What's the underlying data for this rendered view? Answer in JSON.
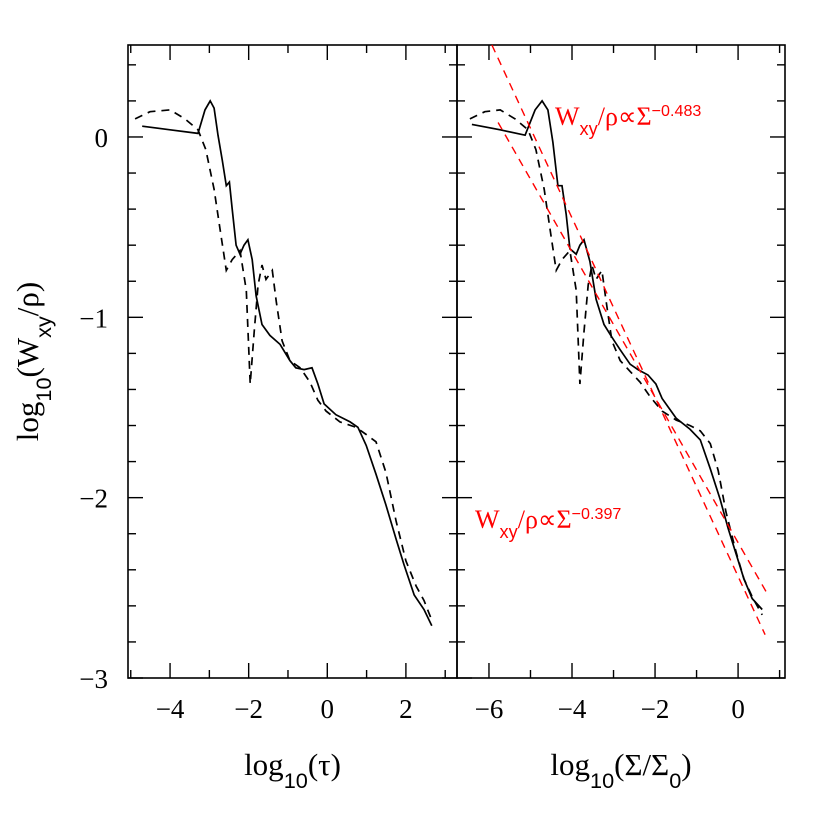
{
  "chart_data": [
    {
      "type": "line",
      "xlabel": [
        {
          "text": "log"
        },
        {
          "text": "10",
          "sub": true
        },
        {
          "text": "(τ)"
        }
      ],
      "ylabel": [
        {
          "text": "log"
        },
        {
          "text": "10",
          "sub": true
        },
        {
          "text": "(W"
        },
        {
          "text": "xy",
          "sub": true
        },
        {
          "text": "/ρ)"
        }
      ],
      "xlim": [
        -5.07,
        3.3
      ],
      "ylim": [
        -3,
        0.51
      ],
      "xticks": [
        {
          "value": -4,
          "label": "−4"
        },
        {
          "value": -2,
          "label": "−2"
        },
        0,
        2
      ],
      "yticks": [
        {
          "value": -3,
          "label": "−3"
        },
        {
          "value": -2,
          "label": "−2"
        },
        {
          "value": -1,
          "label": "−1"
        },
        0
      ],
      "minor_xticks": [
        -5,
        -3,
        -1,
        1,
        3
      ],
      "minor_yticks": [
        -2.8,
        -2.6,
        -2.4,
        -2.2,
        -1.8,
        -1.6,
        -1.4,
        -1.2,
        -0.8,
        -0.6,
        -0.4,
        -0.2,
        0.2,
        0.4
      ],
      "series": [
        {
          "color": "#000000",
          "dash": false,
          "x": [
            -4.71,
            -4.0,
            -3.29,
            -3.11,
            -2.98,
            -2.88,
            -2.78,
            -2.67,
            -2.57,
            -2.49,
            -2.42,
            -2.32,
            -2.22,
            -2.12,
            -2.02,
            -1.91,
            -1.81,
            -1.66,
            -1.46,
            -1.2,
            -0.95,
            -0.8,
            -0.59,
            -0.39,
            -0.24,
            -0.08,
            0.22,
            0.58,
            0.78,
            0.99,
            1.24,
            1.49,
            1.75,
            1.95,
            2.21,
            2.46,
            2.66
          ],
          "values": [
            0.06,
            0.04,
            0.02,
            0.15,
            0.2,
            0.16,
            0.01,
            -0.13,
            -0.27,
            -0.25,
            -0.4,
            -0.6,
            -0.65,
            -0.6,
            -0.57,
            -0.68,
            -0.88,
            -1.04,
            -1.1,
            -1.15,
            -1.24,
            -1.28,
            -1.29,
            -1.28,
            -1.37,
            -1.48,
            -1.54,
            -1.58,
            -1.61,
            -1.71,
            -1.87,
            -2.04,
            -2.23,
            -2.37,
            -2.54,
            -2.62,
            -2.71
          ]
        },
        {
          "color": "#000000",
          "dash": true,
          "x": [
            -4.89,
            -4.51,
            -4.0,
            -3.62,
            -3.29,
            -3.09,
            -2.88,
            -2.73,
            -2.57,
            -2.42,
            -2.22,
            -2.06,
            -1.96,
            -1.86,
            -1.76,
            -1.66,
            -1.56,
            -1.4,
            -1.3,
            -1.15,
            -0.95,
            -0.69,
            -0.44,
            -0.24,
            -0.03,
            0.32,
            0.73,
            0.99,
            1.24,
            1.49,
            1.75,
            2.0,
            2.26,
            2.46,
            2.66
          ],
          "values": [
            0.1,
            0.14,
            0.15,
            0.1,
            0.04,
            -0.07,
            -0.29,
            -0.51,
            -0.74,
            -0.68,
            -0.63,
            -0.85,
            -1.37,
            -1.08,
            -0.82,
            -0.71,
            -0.79,
            -0.74,
            -0.91,
            -1.13,
            -1.24,
            -1.28,
            -1.36,
            -1.46,
            -1.52,
            -1.58,
            -1.61,
            -1.65,
            -1.69,
            -1.86,
            -2.13,
            -2.35,
            -2.49,
            -2.57,
            -2.68
          ]
        }
      ]
    },
    {
      "type": "line",
      "xlabel": [
        {
          "text": "log"
        },
        {
          "text": "10",
          "sub": true
        },
        {
          "text": "(Σ/Σ"
        },
        {
          "text": "0",
          "sub": true
        },
        {
          "text": ")"
        }
      ],
      "xlim": [
        -6.77,
        1.13
      ],
      "ylim": [
        -3,
        0.51
      ],
      "xticks": [
        {
          "value": -6,
          "label": "−6"
        },
        {
          "value": -4,
          "label": "−4"
        },
        {
          "value": -2,
          "label": "−2"
        },
        0
      ],
      "yticks": [
        -3,
        -2,
        -1,
        0
      ],
      "minor_xticks": [
        -5,
        -3,
        -1,
        1
      ],
      "minor_yticks": [
        -2.8,
        -2.6,
        -2.4,
        -2.2,
        -1.8,
        -1.6,
        -1.4,
        -1.2,
        -0.8,
        -0.6,
        -0.4,
        -0.2,
        0.2,
        0.4
      ],
      "series": [
        {
          "color": "#000000",
          "dash": false,
          "x": [
            -6.41,
            -5.73,
            -5.13,
            -4.89,
            -4.72,
            -4.58,
            -4.46,
            -4.34,
            -4.24,
            -4.14,
            -4.05,
            -3.9,
            -3.81,
            -3.71,
            -3.57,
            -3.42,
            -3.23,
            -3.04,
            -2.84,
            -2.6,
            -2.41,
            -2.17,
            -1.98,
            -1.83,
            -1.49,
            -1.16,
            -0.91,
            -0.67,
            -0.43,
            -0.24,
            -0.05,
            0.14,
            0.34,
            0.58
          ],
          "values": [
            0.07,
            0.04,
            0.01,
            0.15,
            0.2,
            0.15,
            -0.03,
            -0.27,
            -0.27,
            -0.43,
            -0.62,
            -0.65,
            -0.6,
            -0.57,
            -0.69,
            -0.9,
            -1.04,
            -1.11,
            -1.18,
            -1.26,
            -1.29,
            -1.32,
            -1.37,
            -1.45,
            -1.56,
            -1.62,
            -1.68,
            -1.84,
            -2.01,
            -2.17,
            -2.31,
            -2.45,
            -2.56,
            -2.62
          ]
        },
        {
          "color": "#000000",
          "dash": true,
          "x": [
            -6.46,
            -6.1,
            -5.73,
            -5.37,
            -5.06,
            -4.87,
            -4.67,
            -4.53,
            -4.38,
            -4.24,
            -4.05,
            -3.9,
            -3.81,
            -3.71,
            -3.61,
            -3.52,
            -3.42,
            -3.28,
            -3.18,
            -3.04,
            -2.84,
            -2.6,
            -2.36,
            -2.12,
            -1.83,
            -1.49,
            -1.16,
            -0.91,
            -0.67,
            -0.48,
            -0.29,
            -0.05,
            0.14,
            0.34,
            0.58
          ],
          "values": [
            0.1,
            0.14,
            0.15,
            0.1,
            0.04,
            -0.07,
            -0.29,
            -0.51,
            -0.74,
            -0.68,
            -0.63,
            -0.85,
            -1.37,
            -1.08,
            -0.82,
            -0.71,
            -0.79,
            -0.74,
            -0.91,
            -1.13,
            -1.24,
            -1.3,
            -1.36,
            -1.44,
            -1.52,
            -1.57,
            -1.6,
            -1.63,
            -1.7,
            -1.85,
            -2.08,
            -2.3,
            -2.45,
            -2.55,
            -2.65
          ]
        },
        {
          "color": "#ff0000",
          "dash": true,
          "x": [
            -5.93,
            0.65
          ],
          "values": [
            0.51,
            -2.76
          ]
        },
        {
          "color": "#ff0000",
          "dash": true,
          "x": [
            -5.78,
            0.72
          ],
          "values": [
            0.08,
            -2.54
          ]
        }
      ],
      "annotations": [
        {
          "color": "#ff0000",
          "parts": [
            {
              "text": "W"
            },
            {
              "text": "xy",
              "sub": true
            },
            {
              "text": "/ρ∝Σ"
            },
            {
              "text": "−0.483",
              "sup": true
            }
          ]
        },
        {
          "color": "#ff0000",
          "parts": [
            {
              "text": "W"
            },
            {
              "text": "xy",
              "sub": true
            },
            {
              "text": "/ρ∝Σ"
            },
            {
              "text": "−0.397",
              "sup": true
            }
          ]
        }
      ]
    }
  ]
}
